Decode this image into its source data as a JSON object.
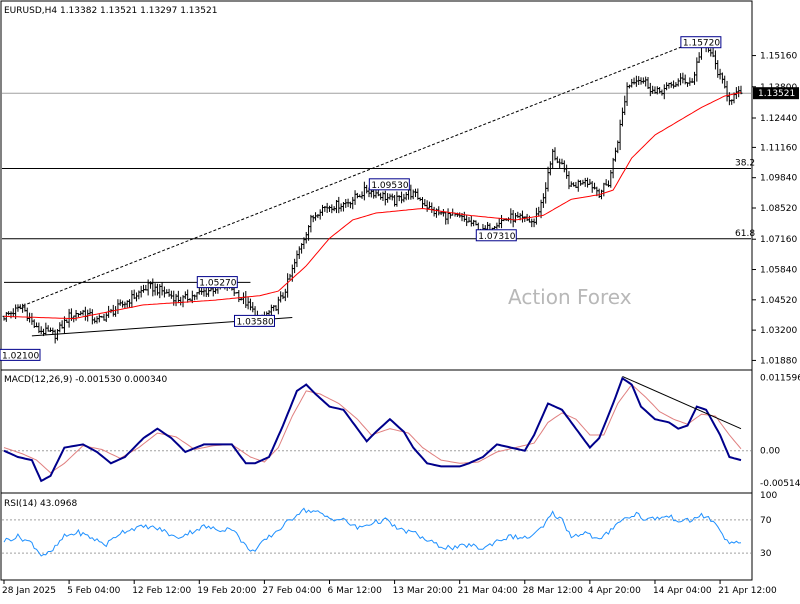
{
  "chart_data": [
    {
      "type": "candlestick",
      "panel": "price",
      "header": "EURUSD,H4  1.13382  1.13521  1.13297  1.13521",
      "last_price_label": "1.13521",
      "last_price": 1.13521,
      "ylim": [
        1.0155,
        1.1745
      ],
      "y_ticks": [
        "1.15160",
        "1.13800",
        "1.12440",
        "1.11160",
        "1.09840",
        "1.08520",
        "1.07160",
        "1.05840",
        "1.04520",
        "1.03200",
        "1.01880"
      ],
      "x_ticks": [
        "28 Jan 2025",
        "5 Feb 04:00",
        "12 Feb 12:00",
        "19 Feb 20:00",
        "27 Feb 04:00",
        "6 Mar 12:00",
        "13 Mar 20:00",
        "21 Mar 04:00",
        "28 Mar 12:00",
        "4 Apr 20:00",
        "14 Apr 04:00",
        "21 Apr 12:00"
      ],
      "x_tick_index": [
        0,
        28,
        56,
        84,
        112,
        140,
        168,
        196,
        224,
        252,
        280,
        308
      ],
      "bar_count": 318,
      "close_anchors": [
        [
          0,
          1.038
        ],
        [
          8,
          1.042
        ],
        [
          14,
          1.0323
        ],
        [
          22,
          1.03
        ],
        [
          28,
          1.038
        ],
        [
          34,
          1.04
        ],
        [
          40,
          1.036
        ],
        [
          48,
          1.041
        ],
        [
          55,
          1.046
        ],
        [
          62,
          1.051
        ],
        [
          68,
          1.049
        ],
        [
          76,
          1.045
        ],
        [
          84,
          1.048
        ],
        [
          90,
          1.05
        ],
        [
          96,
          1.052
        ],
        [
          104,
          1.044
        ],
        [
          110,
          1.0365
        ],
        [
          116,
          1.041
        ],
        [
          120,
          1.047
        ],
        [
          124,
          1.058
        ],
        [
          128,
          1.07
        ],
        [
          132,
          1.08
        ],
        [
          136,
          1.085
        ],
        [
          140,
          1.086
        ],
        [
          146,
          1.087
        ],
        [
          150,
          1.089
        ],
        [
          156,
          1.0931
        ],
        [
          162,
          1.091
        ],
        [
          168,
          1.088
        ],
        [
          174,
          1.092
        ],
        [
          178,
          1.09
        ],
        [
          184,
          1.084
        ],
        [
          190,
          1.082
        ],
        [
          196,
          1.081
        ],
        [
          202,
          1.078
        ],
        [
          206,
          1.0748
        ],
        [
          212,
          1.079
        ],
        [
          218,
          1.081
        ],
        [
          224,
          1.08
        ],
        [
          228,
          1.079
        ],
        [
          232,
          1.09
        ],
        [
          236,
          1.109
        ],
        [
          240,
          1.103
        ],
        [
          244,
          1.094
        ],
        [
          250,
          1.098
        ],
        [
          256,
          1.092
        ],
        [
          260,
          1.096
        ],
        [
          264,
          1.115
        ],
        [
          268,
          1.138
        ],
        [
          272,
          1.142
        ],
        [
          276,
          1.14
        ],
        [
          280,
          1.135
        ],
        [
          286,
          1.138
        ],
        [
          292,
          1.141
        ],
        [
          296,
          1.14
        ],
        [
          300,
          1.156
        ],
        [
          304,
          1.153
        ],
        [
          308,
          1.142
        ],
        [
          312,
          1.133
        ],
        [
          317,
          1.1352
        ]
      ],
      "ma_anchors": [
        [
          0,
          1.038
        ],
        [
          30,
          1.037
        ],
        [
          60,
          1.043
        ],
        [
          90,
          1.045
        ],
        [
          110,
          1.047
        ],
        [
          118,
          1.049
        ],
        [
          130,
          1.06
        ],
        [
          140,
          1.072
        ],
        [
          150,
          1.08
        ],
        [
          160,
          1.083
        ],
        [
          170,
          1.084
        ],
        [
          180,
          1.085
        ],
        [
          200,
          1.082
        ],
        [
          220,
          1.08
        ],
        [
          232,
          1.082
        ],
        [
          244,
          1.089
        ],
        [
          256,
          1.091
        ],
        [
          262,
          1.093
        ],
        [
          270,
          1.107
        ],
        [
          280,
          1.117
        ],
        [
          290,
          1.123
        ],
        [
          300,
          1.129
        ],
        [
          310,
          1.134
        ],
        [
          317,
          1.1355
        ]
      ],
      "ma_color": "#ff0000",
      "candle_color": "#000000",
      "horizontal_levels": [
        {
          "value": 1.1352,
          "label": "",
          "color": "#a0a0a0"
        },
        {
          "value": 1.1024,
          "label": "38.2",
          "color": "#000000"
        },
        {
          "value": 1.0718,
          "label": "61.8",
          "color": "#000000"
        },
        {
          "value": 1.0528,
          "label": "",
          "color": "#000000",
          "x_start_index": 0,
          "x_end_index": 106
        }
      ],
      "trendlines": [
        {
          "from": [
            12,
            1.0295
          ],
          "to": [
            124,
            1.0375
          ],
          "style": "solid"
        },
        {
          "from": [
            6,
            1.0418
          ],
          "to": [
            296,
            1.1572
          ],
          "style": "dashed"
        }
      ],
      "annotations": [
        {
          "text": "1.02100",
          "index": 0,
          "value": 1.021
        },
        {
          "text": "1.05270",
          "index": 84,
          "value": 1.0527
        },
        {
          "text": "1.03580",
          "index": 100,
          "value": 1.0358
        },
        {
          "text": "1.09530",
          "index": 158,
          "value": 1.0953
        },
        {
          "text": "1.07310",
          "index": 204,
          "value": 1.0731
        },
        {
          "text": "1.15720",
          "index": 292,
          "value": 1.1572
        }
      ],
      "watermark": "Action Forex",
      "grid": false
    },
    {
      "type": "line",
      "panel": "macd",
      "header": "MACD(12,26,9) -0.001530 0.000340",
      "ylim": [
        -0.0064,
        0.0125
      ],
      "y_ticks": [
        "0.011596",
        "0.00",
        "-0.005146"
      ],
      "zero_label": "0.00",
      "macd_anchors": [
        [
          0,
          0.0
        ],
        [
          6,
          -0.001
        ],
        [
          12,
          -0.0015
        ],
        [
          16,
          -0.0048
        ],
        [
          20,
          -0.004
        ],
        [
          26,
          0.0005
        ],
        [
          34,
          0.001
        ],
        [
          40,
          -0.0002
        ],
        [
          46,
          -0.002
        ],
        [
          52,
          -0.001
        ],
        [
          60,
          0.002
        ],
        [
          66,
          0.0035
        ],
        [
          72,
          0.002
        ],
        [
          78,
          -0.0002
        ],
        [
          86,
          0.001
        ],
        [
          92,
          0.001
        ],
        [
          98,
          0.001
        ],
        [
          104,
          -0.002
        ],
        [
          108,
          -0.002
        ],
        [
          114,
          -0.001
        ],
        [
          120,
          0.004
        ],
        [
          126,
          0.0095
        ],
        [
          130,
          0.0105
        ],
        [
          134,
          0.009
        ],
        [
          140,
          0.007
        ],
        [
          146,
          0.0065
        ],
        [
          152,
          0.0035
        ],
        [
          156,
          0.0015
        ],
        [
          160,
          0.003
        ],
        [
          166,
          0.005
        ],
        [
          172,
          0.003
        ],
        [
          176,
          0.0005
        ],
        [
          182,
          -0.002
        ],
        [
          188,
          -0.0025
        ],
        [
          196,
          -0.0025
        ],
        [
          200,
          -0.002
        ],
        [
          206,
          -0.001
        ],
        [
          212,
          0.001
        ],
        [
          218,
          0.0005
        ],
        [
          224,
          0.0
        ],
        [
          228,
          0.0025
        ],
        [
          234,
          0.0075
        ],
        [
          240,
          0.0065
        ],
        [
          246,
          0.0035
        ],
        [
          252,
          0.0005
        ],
        [
          256,
          0.002
        ],
        [
          262,
          0.0075
        ],
        [
          266,
          0.0115
        ],
        [
          270,
          0.0105
        ],
        [
          274,
          0.007
        ],
        [
          280,
          0.005
        ],
        [
          286,
          0.0045
        ],
        [
          290,
          0.0035
        ],
        [
          294,
          0.004
        ],
        [
          298,
          0.007
        ],
        [
          302,
          0.0065
        ],
        [
          308,
          0.0025
        ],
        [
          312,
          -0.001
        ],
        [
          317,
          -0.0015
        ]
      ],
      "signal_anchors": [
        [
          0,
          0.0005
        ],
        [
          8,
          -0.0005
        ],
        [
          14,
          -0.0015
        ],
        [
          20,
          -0.0035
        ],
        [
          26,
          -0.002
        ],
        [
          34,
          0.0008
        ],
        [
          42,
          0.0002
        ],
        [
          50,
          -0.0012
        ],
        [
          58,
          0.0005
        ],
        [
          66,
          0.0028
        ],
        [
          74,
          0.0022
        ],
        [
          82,
          0.0002
        ],
        [
          90,
          0.0008
        ],
        [
          98,
          0.001
        ],
        [
          106,
          -0.001
        ],
        [
          112,
          -0.0018
        ],
        [
          118,
          0.0005
        ],
        [
          124,
          0.0055
        ],
        [
          130,
          0.0095
        ],
        [
          136,
          0.009
        ],
        [
          144,
          0.0075
        ],
        [
          152,
          0.005
        ],
        [
          158,
          0.0025
        ],
        [
          166,
          0.0035
        ],
        [
          174,
          0.0028
        ],
        [
          180,
          0.0005
        ],
        [
          188,
          -0.0015
        ],
        [
          196,
          -0.002
        ],
        [
          204,
          -0.0018
        ],
        [
          212,
          -0.0002
        ],
        [
          220,
          0.0005
        ],
        [
          228,
          0.0012
        ],
        [
          234,
          0.0045
        ],
        [
          240,
          0.006
        ],
        [
          246,
          0.005
        ],
        [
          252,
          0.0025
        ],
        [
          258,
          0.0025
        ],
        [
          264,
          0.0075
        ],
        [
          270,
          0.0105
        ],
        [
          276,
          0.0085
        ],
        [
          282,
          0.0062
        ],
        [
          288,
          0.005
        ],
        [
          294,
          0.0042
        ],
        [
          300,
          0.0058
        ],
        [
          306,
          0.0055
        ],
        [
          312,
          0.0025
        ],
        [
          317,
          0.0003
        ]
      ],
      "macd_color": "#00008b",
      "signal_color": "#e08080",
      "trendline": {
        "from": [
          266,
          0.0118
        ],
        "to": [
          317,
          0.0035
        ]
      }
    },
    {
      "type": "line",
      "panel": "rsi",
      "header": "RSI(14) 43.0968",
      "ylim": [
        0,
        100
      ],
      "y_ticks": [
        "100",
        "70",
        "30"
      ],
      "levels": [
        70,
        30
      ],
      "rsi_anchors": [
        [
          0,
          45
        ],
        [
          6,
          50
        ],
        [
          12,
          42
        ],
        [
          16,
          28
        ],
        [
          20,
          30
        ],
        [
          26,
          50
        ],
        [
          32,
          55
        ],
        [
          38,
          48
        ],
        [
          44,
          40
        ],
        [
          50,
          55
        ],
        [
          56,
          60
        ],
        [
          62,
          62
        ],
        [
          68,
          58
        ],
        [
          74,
          48
        ],
        [
          80,
          55
        ],
        [
          86,
          62
        ],
        [
          92,
          58
        ],
        [
          98,
          60
        ],
        [
          104,
          38
        ],
        [
          108,
          32
        ],
        [
          112,
          45
        ],
        [
          118,
          58
        ],
        [
          124,
          72
        ],
        [
          128,
          82
        ],
        [
          134,
          80
        ],
        [
          140,
          72
        ],
        [
          146,
          70
        ],
        [
          152,
          60
        ],
        [
          158,
          66
        ],
        [
          164,
          70
        ],
        [
          170,
          58
        ],
        [
          176,
          55
        ],
        [
          182,
          45
        ],
        [
          188,
          38
        ],
        [
          194,
          36
        ],
        [
          200,
          40
        ],
        [
          206,
          35
        ],
        [
          212,
          45
        ],
        [
          218,
          50
        ],
        [
          224,
          48
        ],
        [
          228,
          52
        ],
        [
          232,
          62
        ],
        [
          236,
          78
        ],
        [
          240,
          70
        ],
        [
          244,
          50
        ],
        [
          250,
          55
        ],
        [
          256,
          45
        ],
        [
          260,
          55
        ],
        [
          264,
          68
        ],
        [
          268,
          72
        ],
        [
          272,
          78
        ],
        [
          276,
          70
        ],
        [
          280,
          72
        ],
        [
          286,
          74
        ],
        [
          292,
          68
        ],
        [
          296,
          70
        ],
        [
          300,
          76
        ],
        [
          304,
          70
        ],
        [
          308,
          58
        ],
        [
          312,
          40
        ],
        [
          317,
          43
        ]
      ],
      "rsi_color": "#1e90ff"
    }
  ]
}
